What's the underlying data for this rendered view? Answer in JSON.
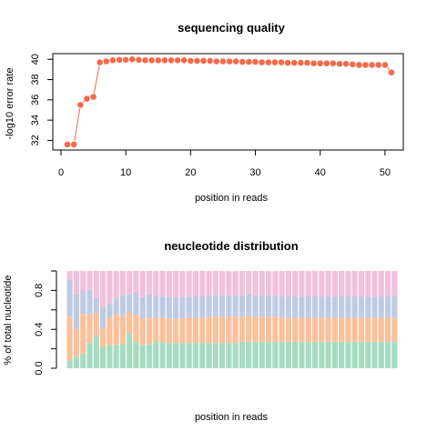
{
  "chart_data": [
    {
      "type": "line",
      "title": "sequencing quality",
      "xlabel": "position in reads",
      "ylabel": "-log10 error rate",
      "xlim": [
        0,
        51
      ],
      "ylim": [
        31.5,
        40.2
      ],
      "xticks": [
        0,
        10,
        20,
        30,
        40,
        50
      ],
      "yticks": [
        32,
        34,
        36,
        38,
        40
      ],
      "color": "#f4694a",
      "x": [
        1,
        2,
        3,
        4,
        5,
        6,
        7,
        8,
        9,
        10,
        11,
        12,
        13,
        14,
        15,
        16,
        17,
        18,
        19,
        20,
        21,
        22,
        23,
        24,
        25,
        26,
        27,
        28,
        29,
        30,
        31,
        32,
        33,
        34,
        35,
        36,
        37,
        38,
        39,
        40,
        41,
        42,
        43,
        44,
        45,
        46,
        47,
        48,
        49,
        50,
        51
      ],
      "y": [
        31.6,
        31.6,
        35.5,
        36.1,
        36.3,
        39.7,
        39.8,
        39.9,
        39.95,
        39.95,
        40.0,
        39.95,
        39.9,
        39.9,
        39.9,
        39.9,
        39.9,
        39.9,
        39.9,
        39.85,
        39.85,
        39.85,
        39.85,
        39.8,
        39.8,
        39.8,
        39.8,
        39.75,
        39.75,
        39.75,
        39.7,
        39.7,
        39.7,
        39.7,
        39.65,
        39.65,
        39.65,
        39.65,
        39.6,
        39.6,
        39.6,
        39.6,
        39.55,
        39.55,
        39.5,
        39.45,
        39.45,
        39.45,
        39.45,
        39.45,
        38.7
      ]
    },
    {
      "type": "bar",
      "stacked": true,
      "title": "neucleotide distribution",
      "xlabel": "position in reads",
      "ylabel": "% of total nucleotide",
      "ylim": [
        0,
        1
      ],
      "yticks": [
        0.0,
        0.4,
        0.8
      ],
      "ytick_labels": [
        "0.0",
        "0.4",
        "0.8"
      ],
      "series": [
        {
          "color": "#a6dcc0",
          "values": [
            0.08,
            0.12,
            0.15,
            0.26,
            0.33,
            0.22,
            0.24,
            0.24,
            0.25,
            0.36,
            0.27,
            0.24,
            0.25,
            0.27,
            0.27,
            0.26,
            0.26,
            0.26,
            0.26,
            0.26,
            0.26,
            0.26,
            0.26,
            0.26,
            0.26,
            0.26,
            0.27,
            0.27,
            0.27,
            0.27,
            0.27,
            0.27,
            0.27,
            0.27,
            0.27,
            0.27,
            0.27,
            0.27,
            0.27,
            0.27,
            0.27,
            0.27,
            0.27,
            0.27,
            0.27,
            0.27,
            0.27,
            0.27,
            0.27,
            0.27
          ]
        },
        {
          "color": "#fcc09a",
          "values": [
            0.45,
            0.28,
            0.41,
            0.29,
            0.24,
            0.19,
            0.28,
            0.31,
            0.29,
            0.21,
            0.28,
            0.27,
            0.27,
            0.25,
            0.25,
            0.25,
            0.25,
            0.25,
            0.26,
            0.26,
            0.26,
            0.27,
            0.27,
            0.27,
            0.27,
            0.27,
            0.26,
            0.27,
            0.26,
            0.26,
            0.26,
            0.26,
            0.25,
            0.25,
            0.25,
            0.25,
            0.25,
            0.25,
            0.25,
            0.25,
            0.25,
            0.25,
            0.25,
            0.25,
            0.25,
            0.25,
            0.25,
            0.25,
            0.25,
            0.25
          ]
        },
        {
          "color": "#bfcae3",
          "values": [
            0.38,
            0.36,
            0.24,
            0.26,
            0.15,
            0.22,
            0.14,
            0.16,
            0.21,
            0.19,
            0.23,
            0.22,
            0.24,
            0.22,
            0.22,
            0.22,
            0.22,
            0.22,
            0.22,
            0.22,
            0.22,
            0.22,
            0.22,
            0.22,
            0.22,
            0.22,
            0.22,
            0.22,
            0.22,
            0.22,
            0.22,
            0.22,
            0.22,
            0.22,
            0.22,
            0.22,
            0.22,
            0.22,
            0.22,
            0.22,
            0.22,
            0.22,
            0.22,
            0.22,
            0.22,
            0.22,
            0.22,
            0.22,
            0.22,
            0.22
          ]
        },
        {
          "color": "#f2bfdc",
          "values": [
            0.09,
            0.24,
            0.2,
            0.19,
            0.28,
            0.37,
            0.34,
            0.29,
            0.25,
            0.24,
            0.22,
            0.27,
            0.24,
            0.26,
            0.26,
            0.27,
            0.27,
            0.27,
            0.26,
            0.26,
            0.26,
            0.25,
            0.25,
            0.25,
            0.25,
            0.25,
            0.25,
            0.24,
            0.25,
            0.25,
            0.25,
            0.25,
            0.26,
            0.26,
            0.26,
            0.26,
            0.26,
            0.26,
            0.26,
            0.26,
            0.26,
            0.26,
            0.26,
            0.26,
            0.26,
            0.26,
            0.26,
            0.26,
            0.26,
            0.26
          ]
        }
      ]
    }
  ]
}
